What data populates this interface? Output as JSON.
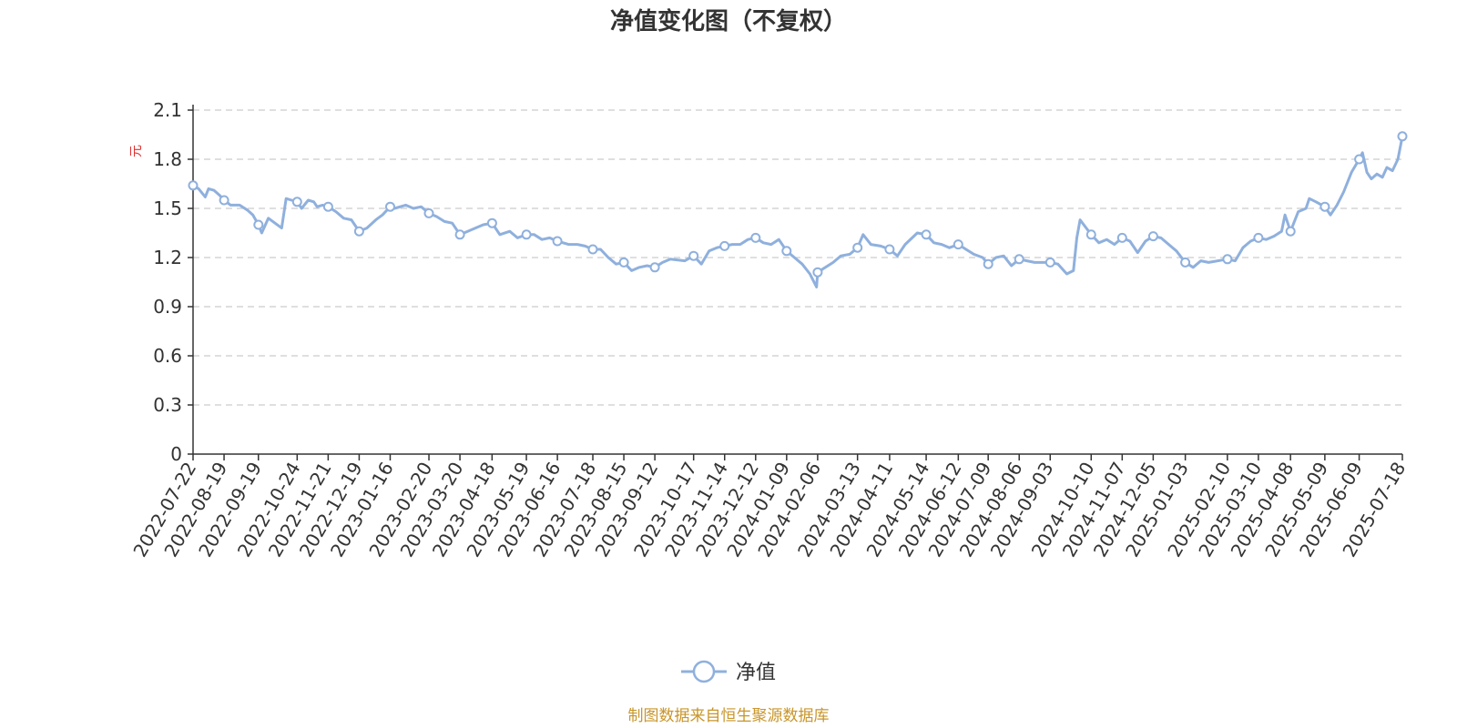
{
  "chart_data": {
    "type": "line",
    "title": "净值变化图（不复权）",
    "ylabel": "元",
    "ylim": [
      0,
      2.1
    ],
    "y_ticks": [
      "0",
      "0.3",
      "0.6",
      "0.9",
      "1.2",
      "1.5",
      "1.8",
      "2.1"
    ],
    "x_ticks": [
      "2022-07-22",
      "2022-08-19",
      "2022-09-19",
      "2022-10-24",
      "2022-11-21",
      "2022-12-19",
      "2023-01-16",
      "2023-02-20",
      "2023-03-20",
      "2023-04-18",
      "2023-05-19",
      "2023-06-16",
      "2023-07-18",
      "2023-08-15",
      "2023-09-12",
      "2023-10-17",
      "2023-11-14",
      "2023-12-12",
      "2024-01-09",
      "2024-02-06",
      "2024-03-13",
      "2024-04-11",
      "2024-05-14",
      "2024-06-12",
      "2024-07-09",
      "2024-08-06",
      "2024-09-03",
      "2024-10-10",
      "2024-11-07",
      "2024-12-05",
      "2025-01-03",
      "2025-02-10",
      "2025-03-10",
      "2025-04-08",
      "2025-05-09",
      "2025-06-09",
      "2025-07-18"
    ],
    "grid": true,
    "legend_position": "bottom-center",
    "series": [
      {
        "name": "净值",
        "color": "#8fb0dd",
        "values": [
          [
            "2022-07-22",
            1.64
          ],
          [
            "2022-07-27",
            1.62
          ],
          [
            "2022-08-02",
            1.57
          ],
          [
            "2022-08-05",
            1.62
          ],
          [
            "2022-08-10",
            1.61
          ],
          [
            "2022-08-15",
            1.58
          ],
          [
            "2022-08-19",
            1.55
          ],
          [
            "2022-08-25",
            1.52
          ],
          [
            "2022-09-02",
            1.52
          ],
          [
            "2022-09-09",
            1.49
          ],
          [
            "2022-09-14",
            1.46
          ],
          [
            "2022-09-19",
            1.4
          ],
          [
            "2022-09-22",
            1.35
          ],
          [
            "2022-09-28",
            1.44
          ],
          [
            "2022-10-10",
            1.38
          ],
          [
            "2022-10-14",
            1.56
          ],
          [
            "2022-10-19",
            1.55
          ],
          [
            "2022-10-24",
            1.54
          ],
          [
            "2022-10-28",
            1.5
          ],
          [
            "2022-11-03",
            1.55
          ],
          [
            "2022-11-08",
            1.54
          ],
          [
            "2022-11-11",
            1.51
          ],
          [
            "2022-11-16",
            1.52
          ],
          [
            "2022-11-21",
            1.51
          ],
          [
            "2022-11-28",
            1.48
          ],
          [
            "2022-12-05",
            1.44
          ],
          [
            "2022-12-12",
            1.43
          ],
          [
            "2022-12-19",
            1.36
          ],
          [
            "2022-12-26",
            1.38
          ],
          [
            "2023-01-03",
            1.43
          ],
          [
            "2023-01-09",
            1.46
          ],
          [
            "2023-01-16",
            1.51
          ],
          [
            "2023-01-20",
            1.5
          ],
          [
            "2023-01-30",
            1.52
          ],
          [
            "2023-02-06",
            1.5
          ],
          [
            "2023-02-13",
            1.51
          ],
          [
            "2023-02-20",
            1.47
          ],
          [
            "2023-02-27",
            1.45
          ],
          [
            "2023-03-06",
            1.42
          ],
          [
            "2023-03-13",
            1.41
          ],
          [
            "2023-03-20",
            1.34
          ],
          [
            "2023-03-27",
            1.36
          ],
          [
            "2023-04-03",
            1.38
          ],
          [
            "2023-04-10",
            1.4
          ],
          [
            "2023-04-18",
            1.41
          ],
          [
            "2023-04-25",
            1.34
          ],
          [
            "2023-05-04",
            1.36
          ],
          [
            "2023-05-11",
            1.32
          ],
          [
            "2023-05-19",
            1.34
          ],
          [
            "2023-05-26",
            1.34
          ],
          [
            "2023-06-02",
            1.31
          ],
          [
            "2023-06-09",
            1.32
          ],
          [
            "2023-06-16",
            1.3
          ],
          [
            "2023-06-26",
            1.28
          ],
          [
            "2023-07-04",
            1.28
          ],
          [
            "2023-07-11",
            1.27
          ],
          [
            "2023-07-18",
            1.25
          ],
          [
            "2023-07-25",
            1.25
          ],
          [
            "2023-08-01",
            1.2
          ],
          [
            "2023-08-08",
            1.16
          ],
          [
            "2023-08-15",
            1.17
          ],
          [
            "2023-08-22",
            1.12
          ],
          [
            "2023-08-29",
            1.14
          ],
          [
            "2023-09-05",
            1.15
          ],
          [
            "2023-09-12",
            1.14
          ],
          [
            "2023-09-19",
            1.17
          ],
          [
            "2023-09-26",
            1.19
          ],
          [
            "2023-10-09",
            1.18
          ],
          [
            "2023-10-17",
            1.21
          ],
          [
            "2023-10-24",
            1.16
          ],
          [
            "2023-10-31",
            1.24
          ],
          [
            "2023-11-07",
            1.26
          ],
          [
            "2023-11-14",
            1.27
          ],
          [
            "2023-11-21",
            1.28
          ],
          [
            "2023-11-28",
            1.28
          ],
          [
            "2023-12-05",
            1.31
          ],
          [
            "2023-12-12",
            1.32
          ],
          [
            "2023-12-19",
            1.29
          ],
          [
            "2023-12-26",
            1.28
          ],
          [
            "2024-01-02",
            1.31
          ],
          [
            "2024-01-09",
            1.24
          ],
          [
            "2024-01-16",
            1.2
          ],
          [
            "2024-01-23",
            1.16
          ],
          [
            "2024-01-30",
            1.1
          ],
          [
            "2024-02-05",
            1.02
          ],
          [
            "2024-02-06",
            1.11
          ],
          [
            "2024-02-20",
            1.17
          ],
          [
            "2024-02-27",
            1.21
          ],
          [
            "2024-03-06",
            1.22
          ],
          [
            "2024-03-13",
            1.26
          ],
          [
            "2024-03-18",
            1.34
          ],
          [
            "2024-03-25",
            1.28
          ],
          [
            "2024-04-03",
            1.27
          ],
          [
            "2024-04-11",
            1.25
          ],
          [
            "2024-04-18",
            1.21
          ],
          [
            "2024-04-25",
            1.28
          ],
          [
            "2024-05-06",
            1.35
          ],
          [
            "2024-05-14",
            1.34
          ],
          [
            "2024-05-21",
            1.29
          ],
          [
            "2024-05-28",
            1.28
          ],
          [
            "2024-06-04",
            1.26
          ],
          [
            "2024-06-12",
            1.28
          ],
          [
            "2024-06-19",
            1.25
          ],
          [
            "2024-06-26",
            1.22
          ],
          [
            "2024-07-04",
            1.2
          ],
          [
            "2024-07-09",
            1.16
          ],
          [
            "2024-07-16",
            1.2
          ],
          [
            "2024-07-23",
            1.21
          ],
          [
            "2024-07-30",
            1.15
          ],
          [
            "2024-08-06",
            1.19
          ],
          [
            "2024-08-13",
            1.18
          ],
          [
            "2024-08-20",
            1.17
          ],
          [
            "2024-08-27",
            1.17
          ],
          [
            "2024-09-03",
            1.17
          ],
          [
            "2024-09-10",
            1.16
          ],
          [
            "2024-09-18",
            1.1
          ],
          [
            "2024-09-24",
            1.12
          ],
          [
            "2024-09-27",
            1.32
          ],
          [
            "2024-09-30",
            1.43
          ],
          [
            "2024-10-10",
            1.34
          ],
          [
            "2024-10-17",
            1.29
          ],
          [
            "2024-10-24",
            1.31
          ],
          [
            "2024-10-31",
            1.28
          ],
          [
            "2024-11-07",
            1.32
          ],
          [
            "2024-11-14",
            1.3
          ],
          [
            "2024-11-21",
            1.23
          ],
          [
            "2024-11-28",
            1.3
          ],
          [
            "2024-12-05",
            1.33
          ],
          [
            "2024-12-12",
            1.32
          ],
          [
            "2024-12-19",
            1.28
          ],
          [
            "2024-12-26",
            1.24
          ],
          [
            "2025-01-03",
            1.17
          ],
          [
            "2025-01-10",
            1.14
          ],
          [
            "2025-01-17",
            1.18
          ],
          [
            "2025-01-24",
            1.17
          ],
          [
            "2025-02-10",
            1.19
          ],
          [
            "2025-02-17",
            1.18
          ],
          [
            "2025-02-24",
            1.26
          ],
          [
            "2025-03-03",
            1.3
          ],
          [
            "2025-03-10",
            1.32
          ],
          [
            "2025-03-17",
            1.31
          ],
          [
            "2025-03-24",
            1.33
          ],
          [
            "2025-03-31",
            1.36
          ],
          [
            "2025-04-03",
            1.46
          ],
          [
            "2025-04-08",
            1.36
          ],
          [
            "2025-04-15",
            1.48
          ],
          [
            "2025-04-22",
            1.5
          ],
          [
            "2025-04-25",
            1.56
          ],
          [
            "2025-05-01",
            1.54
          ],
          [
            "2025-05-09",
            1.51
          ],
          [
            "2025-05-14",
            1.46
          ],
          [
            "2025-05-20",
            1.52
          ],
          [
            "2025-05-26",
            1.6
          ],
          [
            "2025-06-02",
            1.72
          ],
          [
            "2025-06-09",
            1.8
          ],
          [
            "2025-06-12",
            1.84
          ],
          [
            "2025-06-16",
            1.72
          ],
          [
            "2025-06-20",
            1.68
          ],
          [
            "2025-06-25",
            1.71
          ],
          [
            "2025-06-30",
            1.69
          ],
          [
            "2025-07-04",
            1.75
          ],
          [
            "2025-07-09",
            1.73
          ],
          [
            "2025-07-14",
            1.8
          ],
          [
            "2025-07-18",
            1.94
          ]
        ],
        "markers": [
          [
            "2022-07-22",
            1.64
          ],
          [
            "2022-08-19",
            1.55
          ],
          [
            "2022-09-19",
            1.4
          ],
          [
            "2022-10-24",
            1.54
          ],
          [
            "2022-11-21",
            1.51
          ],
          [
            "2022-12-19",
            1.36
          ],
          [
            "2023-01-16",
            1.51
          ],
          [
            "2023-02-20",
            1.47
          ],
          [
            "2023-03-20",
            1.34
          ],
          [
            "2023-04-18",
            1.41
          ],
          [
            "2023-05-19",
            1.34
          ],
          [
            "2023-06-16",
            1.3
          ],
          [
            "2023-07-18",
            1.25
          ],
          [
            "2023-08-15",
            1.17
          ],
          [
            "2023-09-12",
            1.14
          ],
          [
            "2023-10-17",
            1.21
          ],
          [
            "2023-11-14",
            1.27
          ],
          [
            "2023-12-12",
            1.32
          ],
          [
            "2024-01-09",
            1.24
          ],
          [
            "2024-02-06",
            1.11
          ],
          [
            "2024-03-13",
            1.26
          ],
          [
            "2024-04-11",
            1.25
          ],
          [
            "2024-05-14",
            1.34
          ],
          [
            "2024-06-12",
            1.28
          ],
          [
            "2024-07-09",
            1.16
          ],
          [
            "2024-08-06",
            1.19
          ],
          [
            "2024-09-03",
            1.17
          ],
          [
            "2024-10-10",
            1.34
          ],
          [
            "2024-11-07",
            1.32
          ],
          [
            "2024-12-05",
            1.33
          ],
          [
            "2025-01-03",
            1.17
          ],
          [
            "2025-02-10",
            1.19
          ],
          [
            "2025-03-10",
            1.32
          ],
          [
            "2025-04-08",
            1.36
          ],
          [
            "2025-05-09",
            1.51
          ],
          [
            "2025-06-09",
            1.8
          ],
          [
            "2025-07-18",
            1.94
          ]
        ]
      }
    ]
  },
  "legend": {
    "label": "净值"
  },
  "footer": {
    "source": "制图数据来自恒生聚源数据库"
  }
}
